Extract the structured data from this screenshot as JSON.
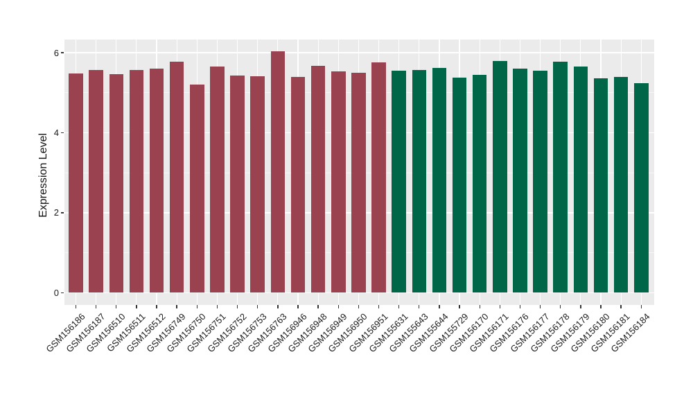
{
  "chart_data": {
    "type": "bar",
    "title": "",
    "xlabel": "",
    "ylabel": "Expression Level",
    "ylim": [
      0,
      6.33
    ],
    "yticks": [
      0,
      2,
      4,
      6
    ],
    "minor_yticks": [
      1,
      3,
      5
    ],
    "grid": "on",
    "legend": "none",
    "panel_style": "ggplot-gray",
    "categories": [
      "GSM156186",
      "GSM156187",
      "GSM156510",
      "GSM156511",
      "GSM156512",
      "GSM156749",
      "GSM156750",
      "GSM156751",
      "GSM156752",
      "GSM156753",
      "GSM156763",
      "GSM156946",
      "GSM156948",
      "GSM156949",
      "GSM156950",
      "GSM156951",
      "GSM155631",
      "GSM155643",
      "GSM155644",
      "GSM155729",
      "GSM156170",
      "GSM156171",
      "GSM156176",
      "GSM156177",
      "GSM156178",
      "GSM156179",
      "GSM156180",
      "GSM156181",
      "GSM156184"
    ],
    "values": [
      5.49,
      5.57,
      5.46,
      5.57,
      5.6,
      5.78,
      5.21,
      5.66,
      5.43,
      5.42,
      6.04,
      5.4,
      5.68,
      5.54,
      5.5,
      5.76,
      5.55,
      5.56,
      5.62,
      5.38,
      5.44,
      5.79,
      5.61,
      5.55,
      5.78,
      5.66,
      5.36,
      5.39,
      5.24
    ],
    "bar_group": [
      0,
      0,
      0,
      0,
      0,
      0,
      0,
      0,
      0,
      0,
      0,
      0,
      0,
      0,
      0,
      0,
      1,
      1,
      1,
      1,
      1,
      1,
      1,
      1,
      1,
      1,
      1,
      1,
      1
    ],
    "series": [
      {
        "name": "group-red",
        "color": "#9B4251"
      },
      {
        "name": "group-green",
        "color": "#006648"
      }
    ]
  },
  "colors": {
    "page_bg": "#FFFFFF",
    "panel_bg": "#EBEBEB",
    "gridline": "#FFFFFF",
    "bar_red": "#9B4251",
    "bar_green": "#006648",
    "axis_text": "#1A1A1A",
    "tick_mark": "#333333"
  }
}
